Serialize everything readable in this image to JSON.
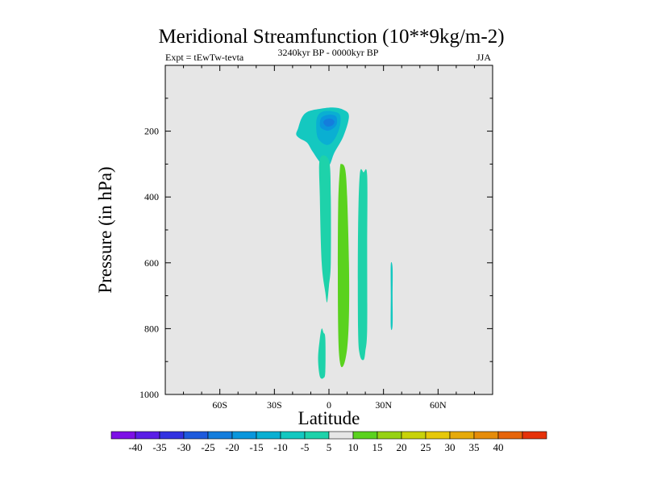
{
  "chart_data": {
    "type": "filled-contour",
    "title": "Meridional Streamfunction (10**9kg/m-2)",
    "left_string": "Expt = tEwTw-tevta",
    "center_string": "3240kyr BP - 0000kyr BP",
    "right_string": "JJA",
    "xlabel": "Latitude",
    "ylabel": "Pressure (in hPa)",
    "x_range": [
      -90,
      90
    ],
    "y_range": [
      1000,
      0
    ],
    "x_ticks": [
      {
        "value": -60,
        "label": "60S"
      },
      {
        "value": -30,
        "label": "30S"
      },
      {
        "value": 0,
        "label": "0"
      },
      {
        "value": 30,
        "label": "30N"
      },
      {
        "value": 60,
        "label": "60N"
      }
    ],
    "y_ticks": [
      {
        "value": 200,
        "label": "200"
      },
      {
        "value": 400,
        "label": "400"
      },
      {
        "value": 600,
        "label": "600"
      },
      {
        "value": 800,
        "label": "800"
      },
      {
        "value": 1000,
        "label": "1000"
      }
    ],
    "background_color": "#e6e6e6",
    "contour_levels": [
      -40,
      -35,
      -30,
      -25,
      -20,
      -15,
      -10,
      -5,
      5,
      10,
      15,
      20,
      25,
      30,
      35,
      40
    ],
    "colorbar_colors": [
      "#7d10e6",
      "#5a1ee6",
      "#3232e0",
      "#1e5adc",
      "#147ddc",
      "#0a96dc",
      "#0aafd2",
      "#14c8c0",
      "#1ed2aa",
      "#e6e6e6",
      "#5ad21e",
      "#96d214",
      "#c8d20a",
      "#e6c80a",
      "#e6aa0a",
      "#e68c0a",
      "#e6640a",
      "#e6320a"
    ],
    "features": [
      {
        "name": "upper-negative-cell-outer",
        "value": -10,
        "color": "#14c8c0",
        "outline": [
          [
            -17,
            192
          ],
          [
            -15,
            160
          ],
          [
            -12,
            142
          ],
          [
            -6,
            133
          ],
          [
            2,
            128
          ],
          [
            8,
            135
          ],
          [
            11,
            155
          ],
          [
            8,
            215
          ],
          [
            3,
            265
          ],
          [
            0,
            305
          ],
          [
            -4,
            300
          ],
          [
            -9,
            262
          ],
          [
            -12,
            235
          ],
          [
            -16,
            222
          ],
          [
            -18,
            210
          ]
        ]
      },
      {
        "name": "upper-negative-cell-mid",
        "value": -15,
        "color": "#0aafd2",
        "outline": [
          [
            -7,
            178
          ],
          [
            -6,
            152
          ],
          [
            -3,
            140
          ],
          [
            2,
            140
          ],
          [
            6,
            150
          ],
          [
            6,
            185
          ],
          [
            3,
            225
          ],
          [
            -1,
            242
          ],
          [
            -6,
            222
          ]
        ]
      },
      {
        "name": "upper-negative-cell-core",
        "value": -20,
        "color": "#0a96dc",
        "outline": [
          [
            -5,
            178
          ],
          [
            -4,
            158
          ],
          [
            0,
            150
          ],
          [
            4,
            156
          ],
          [
            4,
            182
          ],
          [
            0,
            198
          ],
          [
            -4,
            192
          ]
        ]
      },
      {
        "name": "upper-negative-cell-center",
        "value": -25,
        "color": "#147ddc",
        "outline": [
          [
            -3,
            175
          ],
          [
            -2,
            165
          ],
          [
            1,
            162
          ],
          [
            3,
            170
          ],
          [
            2,
            182
          ],
          [
            -1,
            186
          ]
        ]
      },
      {
        "name": "equatorial-negative-column",
        "value": -10,
        "color": "#1ed2aa",
        "outline": [
          [
            -5,
            285
          ],
          [
            0,
            290
          ],
          [
            1,
            400
          ],
          [
            1,
            600
          ],
          [
            0,
            670
          ],
          [
            -1,
            720
          ],
          [
            -2,
            690
          ],
          [
            -4,
            600
          ],
          [
            -5,
            400
          ]
        ]
      },
      {
        "name": "lower-negative-cell",
        "value": -10,
        "color": "#1ed2aa",
        "outline": [
          [
            -4,
            800
          ],
          [
            -3,
            812
          ],
          [
            -2,
            830
          ],
          [
            -2,
            930
          ],
          [
            -3,
            950
          ],
          [
            -5,
            945
          ],
          [
            -6,
            890
          ],
          [
            -5,
            830
          ]
        ]
      },
      {
        "name": "positive-cell-near-equator",
        "value": 10,
        "color": "#5ad21e",
        "outline": [
          [
            6,
            318
          ],
          [
            7,
            300
          ],
          [
            9,
            318
          ],
          [
            10,
            400
          ],
          [
            11,
            600
          ],
          [
            11,
            760
          ],
          [
            10,
            860
          ],
          [
            8,
            912
          ],
          [
            6,
            900
          ],
          [
            5,
            780
          ],
          [
            5,
            450
          ]
        ]
      },
      {
        "name": "negative-column-20N",
        "value": -10,
        "color": "#1ed2aa",
        "outline": [
          [
            17,
            330
          ],
          [
            19,
            325
          ],
          [
            21,
            335
          ],
          [
            21,
            550
          ],
          [
            21,
            800
          ],
          [
            20,
            870
          ],
          [
            19,
            895
          ],
          [
            17,
            880
          ],
          [
            16,
            800
          ],
          [
            16,
            500
          ]
        ]
      },
      {
        "name": "negative-sliver-35N",
        "value": -10,
        "color": "#14c8c0",
        "outline": [
          [
            34,
            605
          ],
          [
            35,
            615
          ],
          [
            35,
            700
          ],
          [
            35,
            790
          ],
          [
            34,
            795
          ],
          [
            34,
            700
          ]
        ]
      }
    ]
  }
}
